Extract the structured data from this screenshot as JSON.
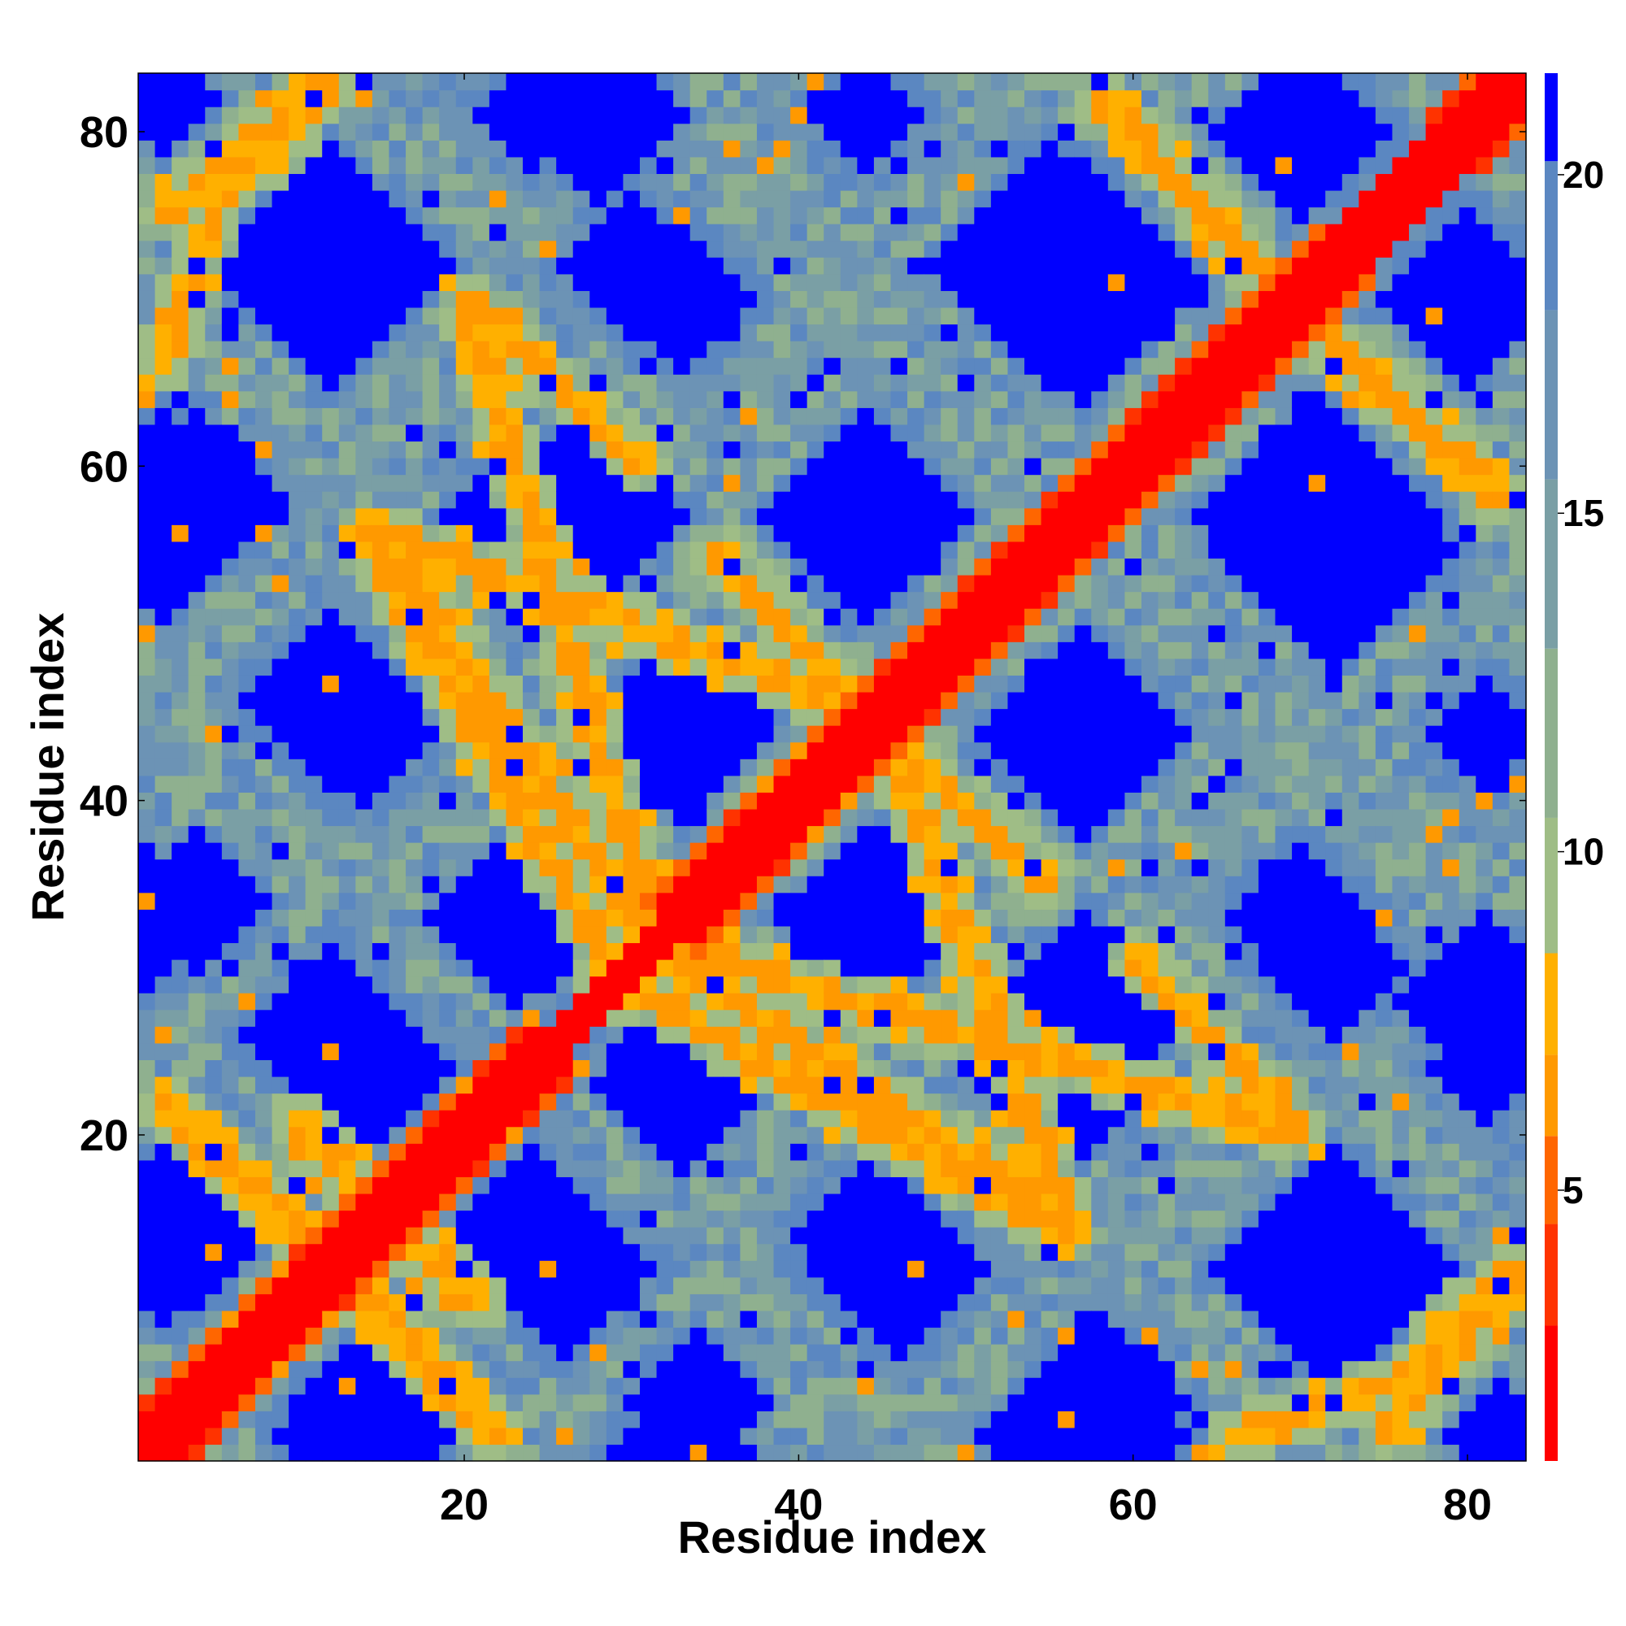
{
  "chart_data": {
    "type": "heatmap",
    "title": "",
    "xlabel": "Residue index",
    "ylabel": "Residue index",
    "n_residues": 83,
    "xlim": [
      1,
      83
    ],
    "ylim": [
      1,
      83
    ],
    "x_ticks": [
      20,
      40,
      60,
      80
    ],
    "y_ticks": [
      20,
      40,
      60,
      80
    ],
    "x_tick_labels": [
      "20",
      "40",
      "60",
      "80"
    ],
    "y_tick_labels": [
      "20",
      "40",
      "60",
      "80"
    ],
    "colorbar": {
      "ticks": [
        5,
        10,
        15,
        20
      ],
      "tick_labels": [
        "5",
        "10",
        "15",
        "20"
      ],
      "range": [
        1,
        21.5
      ],
      "levels": [
        {
          "max": 3.0,
          "color": "#ff0000"
        },
        {
          "max": 4.5,
          "color": "#ff3300"
        },
        {
          "max": 5.8,
          "color": "#ff6600"
        },
        {
          "max": 7.0,
          "color": "#ff9900"
        },
        {
          "max": 8.5,
          "color": "#ffb000"
        },
        {
          "max": 10.5,
          "color": "#9fbd86"
        },
        {
          "max": 13.0,
          "color": "#8fb08f"
        },
        {
          "max": 15.5,
          "color": "#7a9fa5"
        },
        {
          "max": 18.0,
          "color": "#6c93b5"
        },
        {
          "max": 20.2,
          "color": "#5b87c1"
        },
        {
          "max": 99,
          "color": "#0000ff"
        }
      ]
    },
    "diagonal_bands": [
      {
        "start": [
          10,
          20
        ],
        "end": [
          21,
          10
        ],
        "value": 7
      },
      {
        "start": [
          20,
          70
        ],
        "end": [
          32,
          30
        ],
        "value": 6.5
      },
      {
        "start": [
          14,
          56
        ],
        "end": [
          30,
          28
        ],
        "value": 6.5
      },
      {
        "start": [
          35,
          55
        ],
        "end": [
          45,
          44
        ],
        "value": 6.5
      },
      {
        "start": [
          45,
          45
        ],
        "end": [
          56,
          15
        ],
        "value": 6.5
      },
      {
        "start": [
          33,
          30
        ],
        "end": [
          56,
          15
        ],
        "value": 6.5
      },
      {
        "start": [
          60,
          31
        ],
        "end": [
          70,
          20
        ],
        "value": 6.5
      },
      {
        "start": [
          60,
          80
        ],
        "end": [
          69,
          70
        ],
        "value": 6.5
      },
      {
        "start": [
          69,
          70
        ],
        "end": [
          82,
          58
        ],
        "value": 6.5
      },
      {
        "start": [
          2,
          75
        ],
        "end": [
          12,
          83
        ],
        "value": 7
      },
      {
        "start": [
          14,
          10
        ],
        "end": [
          22,
          2
        ],
        "value": 7
      },
      {
        "start": [
          66,
          2
        ],
        "end": [
          78,
          6
        ],
        "value": 7
      },
      {
        "start": [
          78,
          8
        ],
        "end": [
          83,
          12
        ],
        "value": 7
      }
    ],
    "high_distance_blocks": [
      {
        "center": [
          12,
          72
        ],
        "radius": 7
      },
      {
        "center": [
          30,
          72
        ],
        "radius": 4.5
      },
      {
        "center": [
          55,
          72
        ],
        "radius": 7
      },
      {
        "center": [
          80,
          72
        ],
        "radius": 3.5
      },
      {
        "center": [
          70,
          80
        ],
        "radius": 5
      },
      {
        "center": [
          28,
          81
        ],
        "radius": 5
      },
      {
        "center": [
          4,
          58
        ],
        "radius": 5
      },
      {
        "center": [
          27,
          57
        ],
        "radius": 6
      },
      {
        "center": [
          44,
          57
        ],
        "radius": 6
      },
      {
        "center": [
          71,
          57
        ],
        "radius": 7
      },
      {
        "center": [
          14,
          44
        ],
        "radius": 4.5
      },
      {
        "center": [
          33,
          44
        ],
        "radius": 5
      },
      {
        "center": [
          57,
          44
        ],
        "radius": 6
      },
      {
        "center": [
          81,
          44
        ],
        "radius": 3.5
      },
      {
        "center": [
          4,
          34
        ],
        "radius": 4
      },
      {
        "center": [
          25,
          33
        ],
        "radius": 4.5
      },
      {
        "center": [
          45,
          33
        ],
        "radius": 5
      },
      {
        "center": [
          70,
          33
        ],
        "radius": 4.5
      },
      {
        "center": [
          14,
          24
        ],
        "radius": 5
      },
      {
        "center": [
          33,
          23
        ],
        "radius": 5
      },
      {
        "center": [
          56,
          24
        ],
        "radius": 6
      },
      {
        "center": [
          81,
          24
        ],
        "radius": 3.5
      },
      {
        "center": [
          4,
          14
        ],
        "radius": 4
      },
      {
        "center": [
          26,
          12
        ],
        "radius": 5.5
      },
      {
        "center": [
          46,
          12
        ],
        "radius": 5.5
      },
      {
        "center": [
          72,
          12
        ],
        "radius": 7
      },
      {
        "center": [
          14,
          2
        ],
        "radius": 5
      },
      {
        "center": [
          33,
          1
        ],
        "radius": 4
      },
      {
        "center": [
          57,
          2
        ],
        "radius": 6
      },
      {
        "center": [
          82,
          2
        ],
        "radius": 3
      }
    ]
  }
}
